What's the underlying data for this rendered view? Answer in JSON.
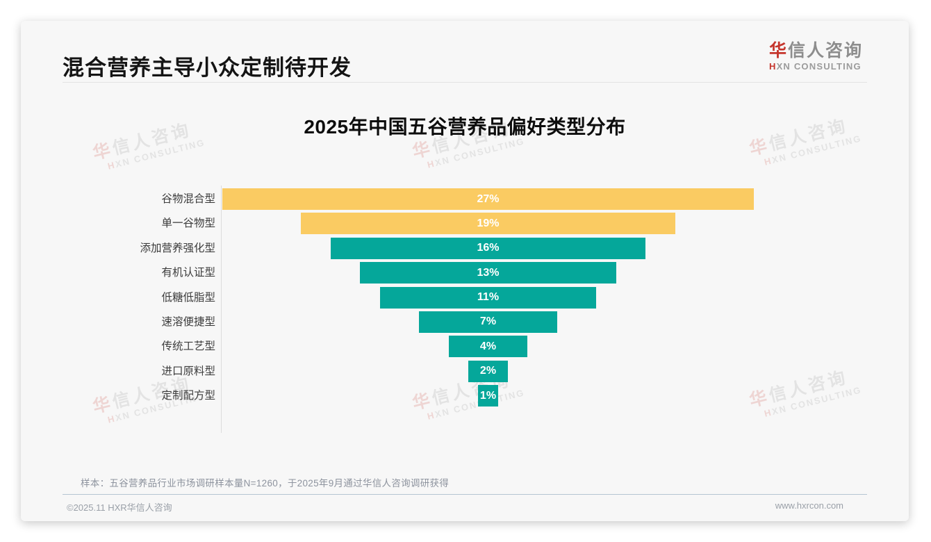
{
  "header": {
    "title": "混合营养主导小众定制待开发"
  },
  "logo": {
    "cn_first": "华",
    "cn_rest": "信人咨询",
    "en_first": "H",
    "en_rest": "XN CONSULTING"
  },
  "watermark": {
    "cn_first": "华",
    "cn_rest": "信人咨询",
    "en_first": "H",
    "en_rest": "XN CONSULTING"
  },
  "chart_data": {
    "type": "bar",
    "variant": "centered-funnel",
    "title": "2025年中国五谷营养品偏好类型分布",
    "categories": [
      "谷物混合型",
      "单一谷物型",
      "添加营养强化型",
      "有机认证型",
      "低糖低脂型",
      "速溶便捷型",
      "传统工艺型",
      "进口原料型",
      "定制配方型"
    ],
    "values": [
      27,
      19,
      16,
      13,
      11,
      7,
      4,
      2,
      1
    ],
    "value_labels": [
      "27%",
      "19%",
      "16%",
      "13%",
      "11%",
      "7%",
      "4%",
      "2%",
      "1%"
    ],
    "bar_colors": [
      "#FACB62",
      "#FACB62",
      "#05A79A",
      "#05A79A",
      "#05A79A",
      "#05A79A",
      "#05A79A",
      "#05A79A",
      "#05A79A"
    ],
    "unit": "%",
    "xlabel": "",
    "ylabel": "",
    "xlim": [
      0,
      27
    ],
    "legend": false,
    "grid": false,
    "value_label_color": "#ffffff",
    "category_label_color": "#3c3c3c"
  },
  "footnote": {
    "text": "样本：五谷营养品行业市场调研样本量N=1260，于2025年9月通过华信人咨询调研获得"
  },
  "footer": {
    "copyright": "©2025.11 HXR华信人咨询",
    "website": "www.hxrcon.com"
  },
  "colors": {
    "accent_yellow": "#FACB62",
    "accent_teal": "#05A79A",
    "logo_red": "#C5352C",
    "card_background": "#f7f7f7"
  }
}
